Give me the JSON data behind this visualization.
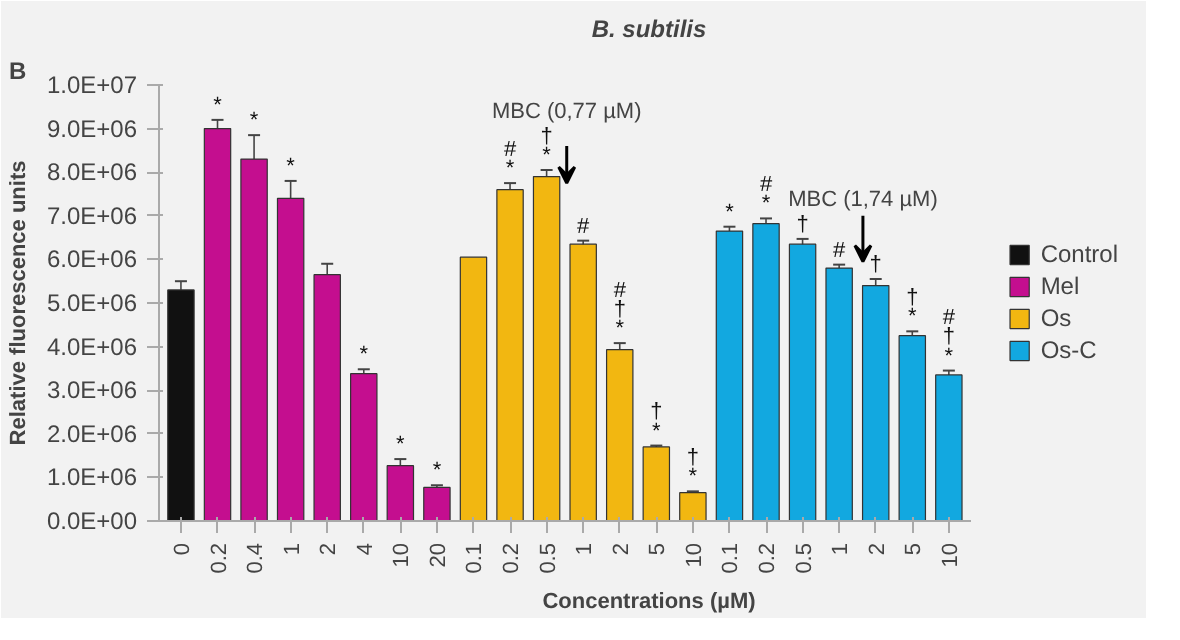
{
  "chart_data": {
    "type": "bar",
    "title": "B. subtilis",
    "xlabel": "Concentrations (µM)",
    "ylabel": "Relative fluorescence units",
    "categories": [
      "0",
      "0.2",
      "0.4",
      "1",
      "2",
      "4",
      "10",
      "20",
      "0.1",
      "0.2",
      "0.5",
      "1",
      "2",
      "5",
      "10",
      "0.1",
      "0.2",
      "0.5",
      "1",
      "2",
      "5",
      "10"
    ],
    "series": [
      {
        "name": "Control",
        "color": "#111111",
        "values": [
          5300000,
          null,
          null,
          null,
          null,
          null,
          null,
          null,
          null,
          null,
          null,
          null,
          null,
          null,
          null,
          null,
          null,
          null,
          null,
          null,
          null,
          null
        ],
        "errors": [
          200000,
          null,
          null,
          null,
          null,
          null,
          null,
          null,
          null,
          null,
          null,
          null,
          null,
          null,
          null,
          null,
          null,
          null,
          null,
          null,
          null,
          null
        ],
        "value_labels": [
          null,
          null,
          null,
          null,
          null,
          null,
          null,
          null,
          null,
          null,
          null,
          null,
          null,
          null,
          null,
          null,
          null,
          null,
          null,
          null,
          null,
          null
        ]
      },
      {
        "name": "Mel",
        "color": "#c40e8f",
        "values": [
          null,
          9000000,
          8300000,
          7400000,
          5650000,
          3380000,
          1270000,
          770000,
          null,
          null,
          null,
          null,
          null,
          null,
          null,
          null,
          null,
          null,
          null,
          null,
          null,
          null
        ],
        "errors": [
          null,
          200000,
          550000,
          400000,
          250000,
          100000,
          150000,
          50000,
          null,
          null,
          null,
          null,
          null,
          null,
          null,
          null,
          null,
          null,
          null,
          null,
          null,
          null
        ],
        "value_labels": [
          null,
          "*",
          "*",
          "*",
          null,
          "*",
          "*",
          "*",
          null,
          null,
          null,
          null,
          null,
          null,
          null,
          null,
          null,
          null,
          null,
          null,
          null,
          null
        ]
      },
      {
        "name": "Os",
        "color": "#f2b711",
        "values": [
          null,
          null,
          null,
          null,
          null,
          null,
          null,
          null,
          6050000,
          7600000,
          7900000,
          6350000,
          3930000,
          1700000,
          650000,
          null,
          null,
          null,
          null,
          null,
          null,
          null
        ],
        "errors": [
          null,
          null,
          null,
          null,
          null,
          null,
          null,
          null,
          null,
          150000,
          150000,
          80000,
          150000,
          30000,
          30000,
          null,
          null,
          null,
          null,
          null,
          null,
          null
        ],
        "value_labels": [
          null,
          null,
          null,
          null,
          null,
          null,
          null,
          null,
          null,
          "#\n*",
          "†\n*",
          "#",
          "#\n†\n*",
          "†\n*",
          "†\n*",
          null,
          null,
          null,
          null,
          null,
          null,
          null
        ]
      },
      {
        "name": "Os-C",
        "color": "#12a8e0",
        "values": [
          null,
          null,
          null,
          null,
          null,
          null,
          null,
          null,
          null,
          null,
          null,
          null,
          null,
          null,
          null,
          6650000,
          6820000,
          6350000,
          5800000,
          5400000,
          4250000,
          3350000
        ],
        "errors": [
          null,
          null,
          null,
          null,
          null,
          null,
          null,
          null,
          null,
          null,
          null,
          null,
          null,
          null,
          null,
          100000,
          120000,
          120000,
          80000,
          150000,
          100000,
          100000
        ],
        "value_labels": [
          null,
          null,
          null,
          null,
          null,
          null,
          null,
          null,
          null,
          null,
          null,
          null,
          null,
          null,
          null,
          "*",
          "#\n*",
          "†",
          "#",
          "†",
          "†\n*",
          "#\n†\n*"
        ]
      }
    ],
    "annotations": [
      "B",
      "MBC (0,77 µM)",
      "MBC (1,74 µM)"
    ],
    "ylim": [
      0,
      10000000
    ],
    "yticks": [
      {
        "value": 0,
        "label": "0.0E+00"
      },
      {
        "value": 1000000,
        "label": "1.0E+06"
      },
      {
        "value": 2000000,
        "label": "2.0E+06"
      },
      {
        "value": 3000000,
        "label": "3.0E+06"
      },
      {
        "value": 4000000,
        "label": "4.0E+06"
      },
      {
        "value": 5000000,
        "label": "5.0E+06"
      },
      {
        "value": 6000000,
        "label": "6.0E+06"
      },
      {
        "value": 7000000,
        "label": "7.0E+06"
      },
      {
        "value": 8000000,
        "label": "8.0E+06"
      },
      {
        "value": 9000000,
        "label": "9.0E+06"
      },
      {
        "value": 10000000,
        "label": "1.0E+07"
      }
    ],
    "grid": false,
    "legend": "right"
  }
}
